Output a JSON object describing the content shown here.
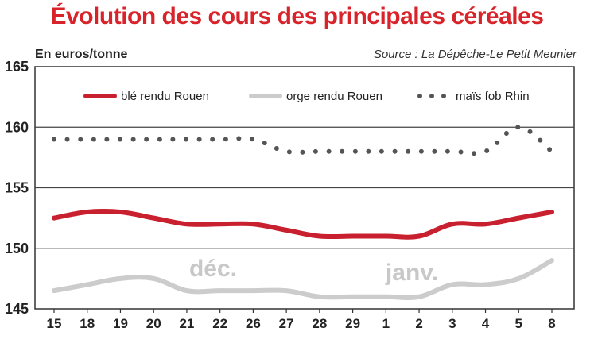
{
  "chart_data": {
    "type": "line",
    "title": "Évolution des cours des principales céréales",
    "ylabel": "En euros/tonne",
    "source": "Source : La Dépêche-Le Petit Meunier",
    "ylim": [
      145,
      165
    ],
    "yticks": [
      "165",
      "160",
      "155",
      "150",
      "145"
    ],
    "categories": [
      "15",
      "18",
      "19",
      "20",
      "21",
      "22",
      "26",
      "27",
      "28",
      "29",
      "1",
      "2",
      "3",
      "4",
      "5",
      "8"
    ],
    "month_labels": [
      "déc.",
      "janv."
    ],
    "grid": true,
    "legend_position": "top",
    "series": [
      {
        "name": "blé rendu Rouen",
        "color": "#c8202f",
        "style": "solid",
        "values": [
          152.5,
          153,
          153,
          152.5,
          152,
          152,
          152,
          151.5,
          151,
          151,
          151,
          151,
          152,
          152,
          152.5,
          153
        ]
      },
      {
        "name": "orge rendu Rouen",
        "color": "#cccccc",
        "style": "solid",
        "values": [
          146.5,
          147,
          147.5,
          147.5,
          146.5,
          146.5,
          146.5,
          146.5,
          146,
          146,
          146,
          146,
          147,
          147,
          147.5,
          149
        ]
      },
      {
        "name": "maïs fob Rhin",
        "color": "#555555",
        "style": "dotted",
        "values": [
          159,
          159,
          159,
          159,
          159,
          159,
          159,
          158,
          158,
          158,
          158,
          158,
          158,
          158,
          160,
          158
        ]
      }
    ]
  }
}
